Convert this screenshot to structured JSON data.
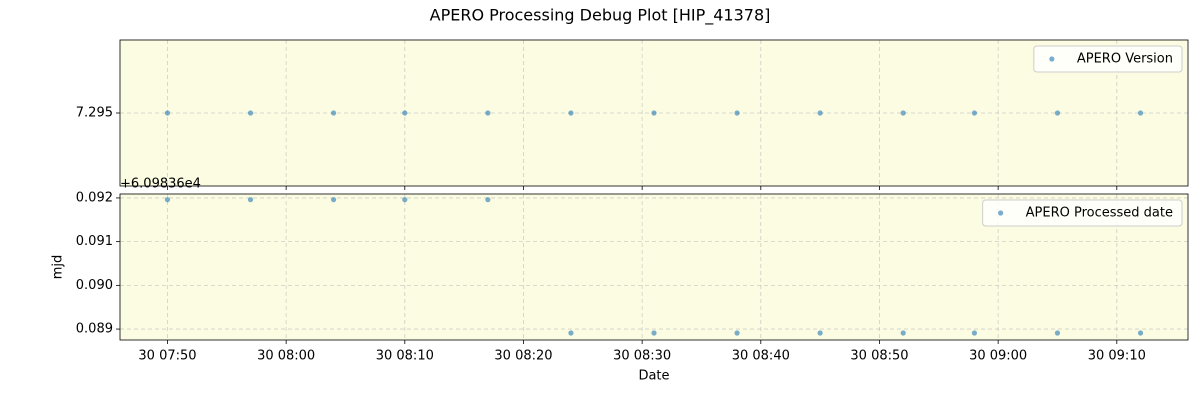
{
  "title": "APERO Processing Debug Plot [HIP_41378]",
  "chart_data": [
    {
      "type": "scatter",
      "x": [
        "30 07:50",
        "30 07:57",
        "30 08:04",
        "30 08:10",
        "30 08:17",
        "30 08:24",
        "30 08:31",
        "30 08:38",
        "30 08:45",
        "30 08:52",
        "30 08:58",
        "30 09:05",
        "30 09:12"
      ],
      "series": [
        {
          "name": "APERO Version",
          "color": "#1f77b4",
          "values": [
            7.295,
            7.295,
            7.295,
            7.295,
            7.295,
            7.295,
            7.295,
            7.295,
            7.295,
            7.295,
            7.295,
            7.295,
            7.295
          ]
        }
      ],
      "xlim": [
        "30 07:46",
        "30 09:16"
      ],
      "xticks": [
        "30 07:50",
        "30 08:00",
        "30 08:10",
        "30 08:20",
        "30 08:30",
        "30 08:40",
        "30 08:50",
        "30 09:00",
        "30 09:10"
      ],
      "ylim": [
        7.294,
        7.296
      ],
      "yticks": [
        7.295
      ],
      "grid": true,
      "legend": "upper right",
      "background": "#fcfce3"
    },
    {
      "type": "scatter",
      "x": [
        "30 07:50",
        "30 07:57",
        "30 08:04",
        "30 08:10",
        "30 08:17",
        "30 08:24",
        "30 08:31",
        "30 08:38",
        "30 08:45",
        "30 08:52",
        "30 08:58",
        "30 09:05",
        "30 09:12"
      ],
      "series": [
        {
          "name": "APERO Processed date",
          "color": "#1f77b4",
          "values": [
            0.09196,
            0.09196,
            0.09196,
            0.09196,
            0.09196,
            0.08891,
            0.08891,
            0.08891,
            0.08891,
            0.08891,
            0.08891,
            0.08891,
            0.08891
          ]
        }
      ],
      "xlim": [
        "30 07:46",
        "30 09:16"
      ],
      "xticks": [
        "30 07:50",
        "30 08:00",
        "30 08:10",
        "30 08:20",
        "30 08:30",
        "30 08:40",
        "30 08:50",
        "30 09:00",
        "30 09:10"
      ],
      "ylim": [
        0.08875,
        0.09209
      ],
      "yticks": [
        0.092,
        0.091,
        {
          "value": 0.09,
          "label": "0.090"
        },
        0.089
      ],
      "y_offset_label": "+6.09836e4",
      "xlabel": "Date",
      "ylabel": "mjd",
      "grid": true,
      "legend": "upper right",
      "background": "#fcfce3"
    }
  ]
}
